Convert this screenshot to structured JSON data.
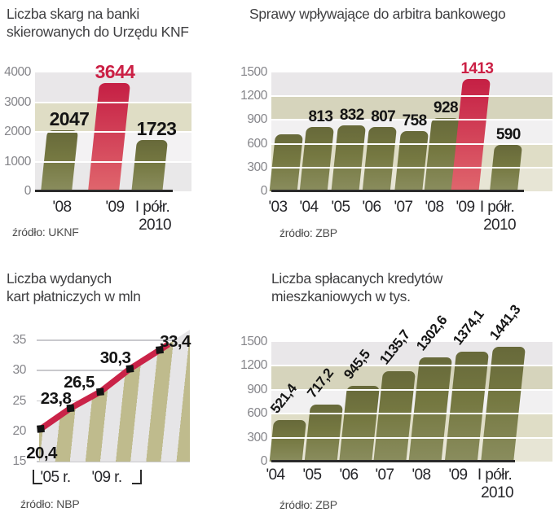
{
  "page": {
    "background": "#ffffff"
  },
  "colors": {
    "olive_bar_top": "#67693a",
    "olive_bar_mid": "#757841",
    "olive_bar_bottom": "#8a8d5e",
    "red_bar_top": "#c51f44",
    "red_bar_bottom": "#e0666d",
    "red_text": "#cb2045",
    "value_text": "#141414",
    "axis_line": "#2b2b2b",
    "tick_text": "#85858a",
    "band_gray": "#e9e7e9",
    "band_khaki": "#d6d4bc",
    "band_light": "#f1f0f1",
    "band_beige": "#dfddc6",
    "band_beige2": "#e7e5d5",
    "stripe_khaki": "#bfbb8d",
    "stripe_gray": "#e6e5e7",
    "line_red": "#ca2348",
    "marker_black": "#141414"
  },
  "chart_data": [
    {
      "id": "knf_complaints",
      "type": "bar",
      "title": "Liczba skarg na banki\nskierowanych do Urzędu KNF",
      "source": "źródło: UKNF",
      "categories": [
        "'08",
        "'09",
        "I półr.\n2010"
      ],
      "values": [
        2047,
        3644,
        1723
      ],
      "value_labels": [
        "2047",
        "3644",
        "1723"
      ],
      "highlight_index": 1,
      "ylim": [
        0,
        4000
      ],
      "yticks": [
        4000,
        3000,
        2000,
        1000,
        0
      ],
      "grid": true,
      "legend": "none"
    },
    {
      "id": "bank_arbiter_cases",
      "type": "bar",
      "title": "Sprawy wpływające do arbitra bankowego",
      "source": "źródło: ZBP",
      "categories": [
        "'03",
        "'04",
        "'05",
        "'06",
        "'07",
        "'08",
        "'09",
        "I półr.\n2010"
      ],
      "values": [
        720,
        813,
        832,
        807,
        758,
        928,
        1413,
        590
      ],
      "value_labels": [
        "",
        "813",
        "832",
        "807",
        "758",
        "928",
        "1413",
        "590"
      ],
      "highlight_index": 6,
      "ylim": [
        0,
        1500
      ],
      "yticks": [
        1500,
        1200,
        900,
        600,
        300,
        0
      ],
      "grid": true,
      "legend": "none"
    },
    {
      "id": "payment_cards",
      "type": "line",
      "title": "Liczba wydanych\nkart płatniczych w mln",
      "source": "źródło: NBP",
      "x_range_labels": [
        "'05 r.",
        "'09 r."
      ],
      "values": [
        20.4,
        23.8,
        26.5,
        30.3,
        33.4
      ],
      "value_labels": [
        "20,4",
        "23,8",
        "26,5",
        "30,3",
        "33,4"
      ],
      "ylim": [
        15,
        35
      ],
      "yticks": [
        35,
        30,
        25,
        20,
        15
      ],
      "grid": true,
      "legend": "none"
    },
    {
      "id": "mortgage_repaid",
      "type": "bar",
      "title": "Liczba spłacanych kredytów\nmieszkaniowych w tys.",
      "source": "źródło: ZBP",
      "categories": [
        "'04",
        "'05",
        "'06",
        "'07",
        "'08",
        "'09",
        "I półr.\n2010"
      ],
      "values": [
        521.4,
        717.2,
        945.5,
        1135.7,
        1302.6,
        1374.1,
        1441.3
      ],
      "value_labels": [
        "521,4",
        "717,2",
        "945,5",
        "1135,7",
        "1302,6",
        "1374,1",
        "1441,3"
      ],
      "rotated_labels": true,
      "highlight_index": -1,
      "ylim": [
        0,
        1500
      ],
      "yticks": [
        1500,
        1200,
        900,
        600,
        300,
        0
      ],
      "grid": true,
      "legend": "none"
    }
  ]
}
